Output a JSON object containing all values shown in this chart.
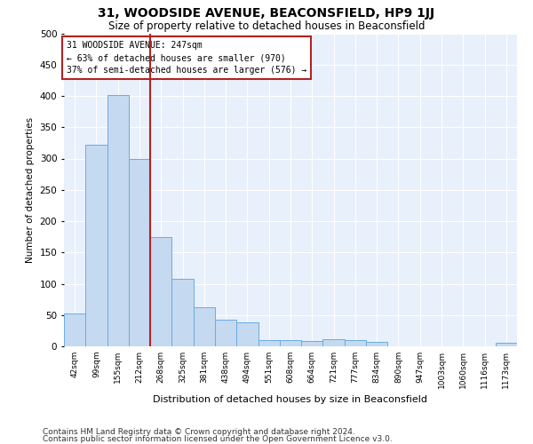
{
  "title1": "31, WOODSIDE AVENUE, BEACONSFIELD, HP9 1JJ",
  "title2": "Size of property relative to detached houses in Beaconsfield",
  "xlabel": "Distribution of detached houses by size in Beaconsfield",
  "ylabel": "Number of detached properties",
  "footer1": "Contains HM Land Registry data © Crown copyright and database right 2024.",
  "footer2": "Contains public sector information licensed under the Open Government Licence v3.0.",
  "annotation_title": "31 WOODSIDE AVENUE: 247sqm",
  "annotation_line2": "← 63% of detached houses are smaller (970)",
  "annotation_line3": "37% of semi-detached houses are larger (576) →",
  "bar_labels": [
    "42sqm",
    "99sqm",
    "155sqm",
    "212sqm",
    "268sqm",
    "325sqm",
    "381sqm",
    "438sqm",
    "494sqm",
    "551sqm",
    "608sqm",
    "664sqm",
    "721sqm",
    "777sqm",
    "834sqm",
    "890sqm",
    "947sqm",
    "1003sqm",
    "1060sqm",
    "1116sqm",
    "1173sqm"
  ],
  "bar_values": [
    52,
    322,
    402,
    300,
    175,
    108,
    62,
    42,
    38,
    10,
    10,
    8,
    12,
    10,
    7,
    0,
    0,
    0,
    0,
    0,
    6
  ],
  "bar_color": "#c5d9f0",
  "bar_edge_color": "#6aace0",
  "vline_color": "#b22222",
  "vline_x": 3.5,
  "ylim": [
    0,
    500
  ],
  "yticks": [
    0,
    50,
    100,
    150,
    200,
    250,
    300,
    350,
    400,
    450,
    500
  ],
  "bg_color": "#e8f0fb",
  "annotation_box_color": "#b22222",
  "title1_fontsize": 10,
  "title2_fontsize": 8.5,
  "axis_fontsize": 7.5,
  "footer_fontsize": 6.5
}
